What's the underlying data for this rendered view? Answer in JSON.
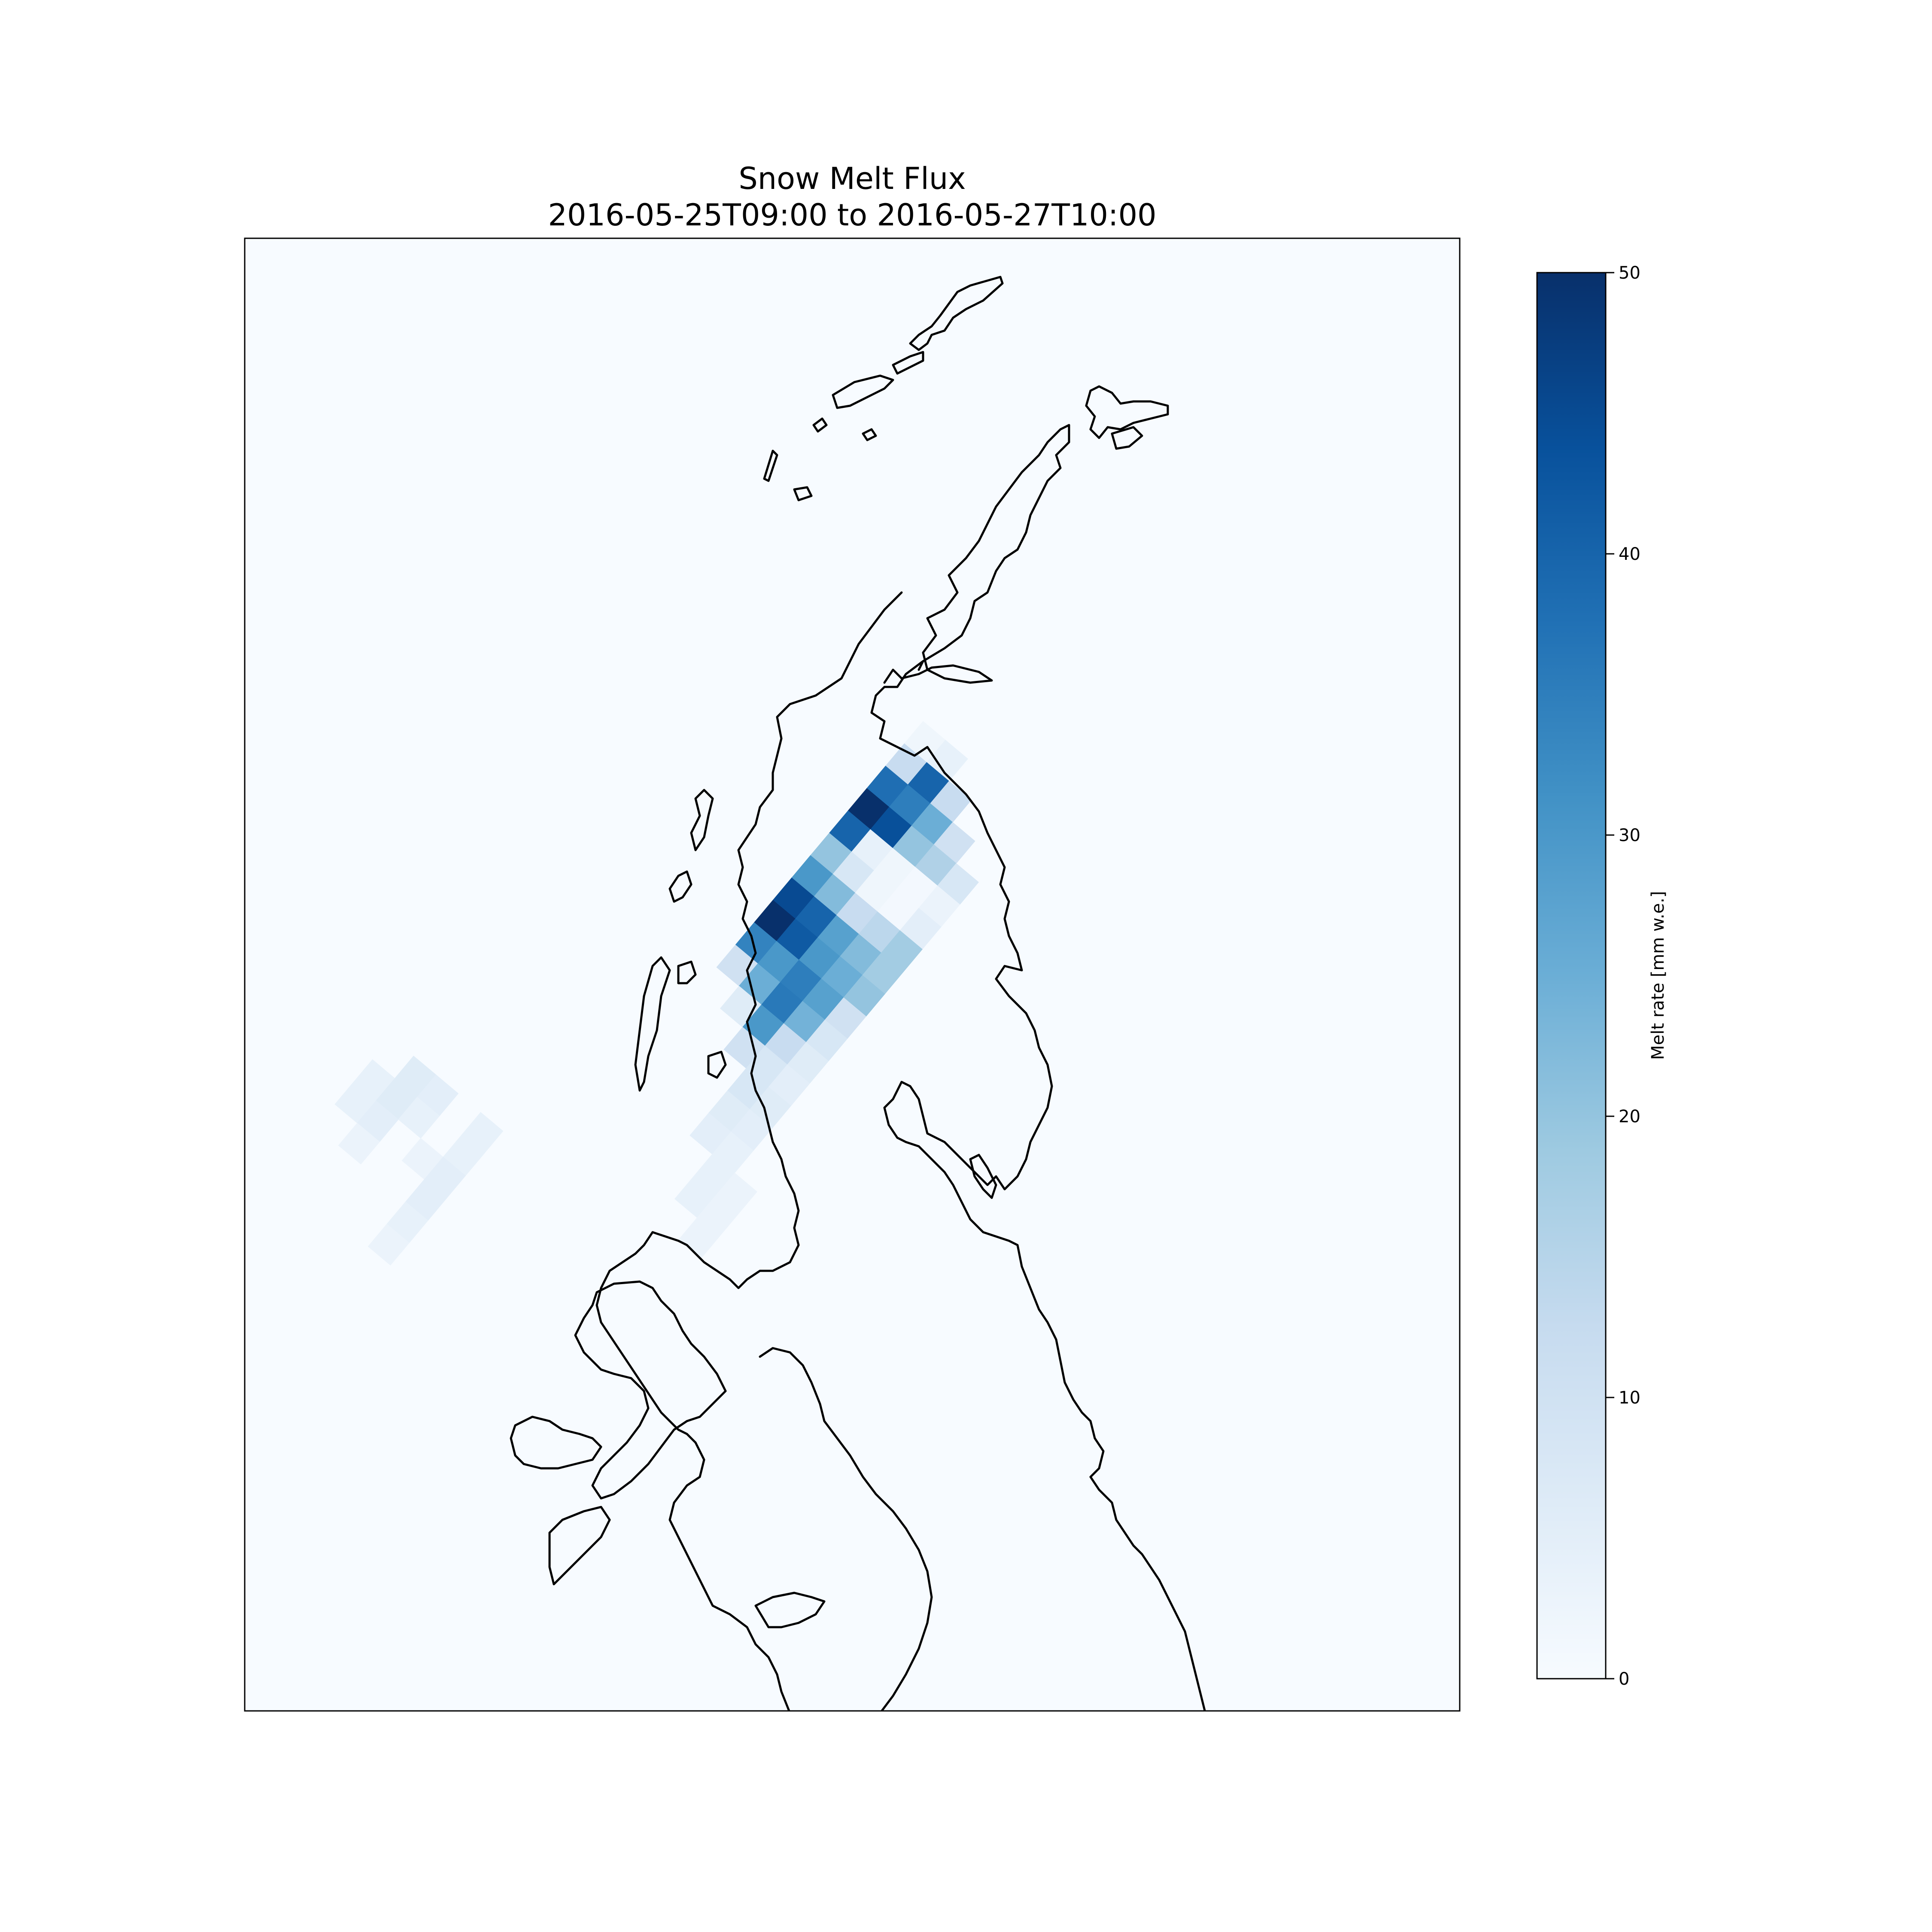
{
  "title": {
    "line1": "Snow Melt Flux",
    "line2": "2016-05-25T09:00 to 2016-05-27T10:00"
  },
  "colorbar": {
    "label": "Melt rate [mm w.e.]",
    "min": 0,
    "max": 50,
    "ticks": [
      "0",
      "10",
      "20",
      "30",
      "40",
      "50"
    ],
    "colormap": "Blues",
    "color_low": "#f7fbff",
    "color_high": "#08306b"
  },
  "map": {
    "background_color": "#f7fbff",
    "coastline_color": "#000000"
  },
  "chart_data": {
    "type": "heatmap",
    "title": "Snow Melt Flux\n2016-05-25T09:00 to 2016-05-27T10:00",
    "colorbar_label": "Melt rate [mm w.e.]",
    "zlim": [
      0,
      50
    ],
    "grid": "rotated model grid (cells estimated from image), values in mm w.e.",
    "cells": [
      {
        "r": 0,
        "c": 0,
        "v": 2
      },
      {
        "r": 0,
        "c": 1,
        "v": 4
      },
      {
        "r": 1,
        "c": 0,
        "v": 12
      },
      {
        "r": 1,
        "c": 1,
        "v": 40
      },
      {
        "r": 1,
        "c": 2,
        "v": 12
      },
      {
        "r": 2,
        "c": 0,
        "v": 38
      },
      {
        "r": 2,
        "c": 1,
        "v": 35
      },
      {
        "r": 2,
        "c": 2,
        "v": 25
      },
      {
        "r": 2,
        "c": 3,
        "v": 10
      },
      {
        "r": 3,
        "c": 0,
        "v": 50
      },
      {
        "r": 3,
        "c": 1,
        "v": 44
      },
      {
        "r": 3,
        "c": 2,
        "v": 20
      },
      {
        "r": 3,
        "c": 3,
        "v": 16
      },
      {
        "r": 3,
        "c": 4,
        "v": 8
      },
      {
        "r": 4,
        "c": 0,
        "v": 40
      },
      {
        "r": 4,
        "c": 1,
        "v": 4
      },
      {
        "r": 4,
        "c": 2,
        "v": 2
      },
      {
        "r": 4,
        "c": 3,
        "v": 1
      },
      {
        "r": 4,
        "c": 4,
        "v": 3
      },
      {
        "r": 5,
        "c": 0,
        "v": 20
      },
      {
        "r": 5,
        "c": 1,
        "v": 8
      },
      {
        "r": 5,
        "c": 2,
        "v": 2
      },
      {
        "r": 5,
        "c": 3,
        "v": 1
      },
      {
        "r": 5,
        "c": 4,
        "v": 5
      },
      {
        "r": 6,
        "c": 0,
        "v": 30
      },
      {
        "r": 6,
        "c": 1,
        "v": 22
      },
      {
        "r": 6,
        "c": 2,
        "v": 12
      },
      {
        "r": 6,
        "c": 3,
        "v": 14
      },
      {
        "r": 6,
        "c": 4,
        "v": 18
      },
      {
        "r": 7,
        "c": 0,
        "v": 45
      },
      {
        "r": 7,
        "c": 1,
        "v": 40
      },
      {
        "r": 7,
        "c": 2,
        "v": 28
      },
      {
        "r": 7,
        "c": 3,
        "v": 22
      },
      {
        "r": 7,
        "c": 4,
        "v": 18
      },
      {
        "r": 8,
        "c": 0,
        "v": 50
      },
      {
        "r": 8,
        "c": 1,
        "v": 42
      },
      {
        "r": 8,
        "c": 2,
        "v": 30
      },
      {
        "r": 8,
        "c": 3,
        "v": 25
      },
      {
        "r": 8,
        "c": 4,
        "v": 20
      },
      {
        "r": 9,
        "c": 0,
        "v": 34
      },
      {
        "r": 9,
        "c": 1,
        "v": 30
      },
      {
        "r": 9,
        "c": 2,
        "v": 35
      },
      {
        "r": 9,
        "c": 3,
        "v": 28
      },
      {
        "r": 9,
        "c": 4,
        "v": 10
      },
      {
        "r": 10,
        "c": 0,
        "v": 10
      },
      {
        "r": 10,
        "c": 1,
        "v": 25
      },
      {
        "r": 10,
        "c": 2,
        "v": 36
      },
      {
        "r": 10,
        "c": 3,
        "v": 24
      },
      {
        "r": 10,
        "c": 4,
        "v": 8
      },
      {
        "r": 11,
        "c": 1,
        "v": 6
      },
      {
        "r": 11,
        "c": 2,
        "v": 30
      },
      {
        "r": 11,
        "c": 3,
        "v": 12
      },
      {
        "r": 11,
        "c": 4,
        "v": 6
      },
      {
        "r": 12,
        "c": 2,
        "v": 10
      },
      {
        "r": 12,
        "c": 3,
        "v": 8
      },
      {
        "r": 12,
        "c": 4,
        "v": 5
      },
      {
        "r": 13,
        "c": 3,
        "v": 8
      },
      {
        "r": 13,
        "c": 4,
        "v": 6
      },
      {
        "r": 14,
        "c": 3,
        "v": 6
      },
      {
        "r": 14,
        "c": 4,
        "v": 5
      },
      {
        "r": 15,
        "c": 3,
        "v": 5
      },
      {
        "r": 15,
        "c": 4,
        "v": 4
      },
      {
        "r": 16,
        "c": 4,
        "v": 4
      },
      {
        "r": 16,
        "c": 5,
        "v": 3
      },
      {
        "r": 17,
        "c": 4,
        "v": 4
      },
      {
        "r": 17,
        "c": 5,
        "v": 3
      },
      {
        "r": 18,
        "c": 5,
        "v": 3
      },
      {
        "r": 20,
        "c": -6,
        "v": 6
      },
      {
        "r": 20,
        "c": -5,
        "v": 5
      },
      {
        "r": 21,
        "c": -7,
        "v": 4
      },
      {
        "r": 21,
        "c": -6,
        "v": 6
      },
      {
        "r": 21,
        "c": -5,
        "v": 4
      },
      {
        "r": 22,
        "c": -7,
        "v": 4
      },
      {
        "r": 22,
        "c": -6,
        "v": 5
      },
      {
        "r": 22,
        "c": -4,
        "v": 3
      },
      {
        "r": 23,
        "c": -6,
        "v": 3
      },
      {
        "r": 20,
        "c": -3,
        "v": 4
      },
      {
        "r": 21,
        "c": -3,
        "v": 4
      },
      {
        "r": 22,
        "c": -3,
        "v": 5
      },
      {
        "r": 23,
        "c": -3,
        "v": 5
      },
      {
        "r": 24,
        "c": -3,
        "v": 4
      },
      {
        "r": 25,
        "c": -3,
        "v": 3
      }
    ]
  }
}
